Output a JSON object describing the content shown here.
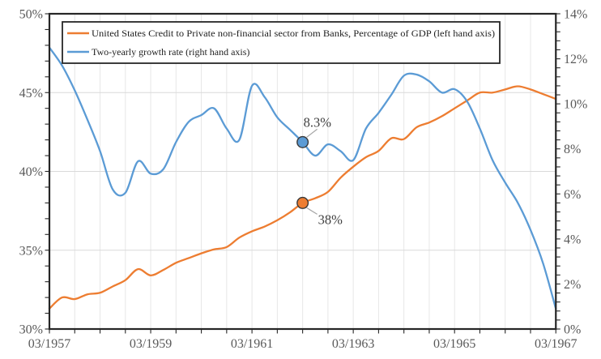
{
  "chart": {
    "legend": {
      "border_color": "#262626",
      "items": [
        {
          "label": "United States Credit to Private non-financial sector from Banks, Percentage of GDP (left hand axis)",
          "color": "#ED7D31"
        },
        {
          "label": "Two-yearly growth rate (right hand axis)",
          "color": "#5B9BD5"
        }
      ]
    }
  },
  "chart_data": {
    "type": "line",
    "title": "",
    "x": [
      "03/1957",
      "06/1957",
      "09/1957",
      "12/1957",
      "03/1958",
      "06/1958",
      "09/1958",
      "12/1958",
      "03/1959",
      "06/1959",
      "09/1959",
      "12/1959",
      "03/1960",
      "06/1960",
      "09/1960",
      "12/1960",
      "03/1961",
      "06/1961",
      "09/1961",
      "12/1961",
      "03/1962",
      "06/1962",
      "09/1962",
      "12/1962",
      "03/1963",
      "06/1963",
      "09/1963",
      "12/1963",
      "03/1964",
      "06/1964",
      "09/1964",
      "12/1964",
      "03/1965",
      "06/1965",
      "09/1965",
      "12/1965",
      "03/1966",
      "06/1966",
      "09/1966",
      "12/1966",
      "03/1967"
    ],
    "series": [
      {
        "name": "United States Credit to Private non-financial sector from Banks, Percentage of GDP (left hand axis)",
        "axis": "left",
        "color": "#ED7D31",
        "values": [
          31.3,
          32.0,
          31.9,
          32.2,
          32.3,
          32.7,
          33.1,
          33.8,
          33.4,
          33.75,
          34.2,
          34.5,
          34.8,
          35.05,
          35.2,
          35.8,
          36.2,
          36.5,
          36.9,
          37.4,
          38.0,
          38.3,
          38.7,
          39.6,
          40.3,
          40.9,
          41.3,
          42.1,
          42.05,
          42.8,
          43.1,
          43.5,
          44.0,
          44.5,
          45.0,
          45.0,
          45.2,
          45.4,
          45.2,
          44.9,
          44.6
        ]
      },
      {
        "name": "Two-yearly growth rate (right hand axis)",
        "axis": "right",
        "color": "#5B9BD5",
        "values": [
          12.5,
          11.7,
          10.6,
          9.3,
          7.9,
          6.2,
          6.05,
          7.45,
          6.9,
          7.1,
          8.3,
          9.2,
          9.5,
          9.8,
          8.9,
          8.4,
          10.8,
          10.3,
          9.4,
          8.85,
          8.3,
          7.7,
          8.2,
          7.9,
          7.5,
          8.9,
          9.6,
          10.4,
          11.25,
          11.3,
          11.0,
          10.5,
          10.65,
          10.1,
          8.9,
          7.5,
          6.5,
          5.6,
          4.4,
          2.9,
          0.9
        ]
      }
    ],
    "left_axis": {
      "range": [
        30,
        50
      ],
      "tick_labels": [
        "50%",
        "45%",
        "40%",
        "35%",
        "30%"
      ],
      "tick_values": [
        50,
        45,
        40,
        35,
        30
      ],
      "minor_tick_step": 1
    },
    "right_axis": {
      "range": [
        0,
        14
      ],
      "tick_labels": [
        "14%",
        "12%",
        "10%",
        "8%",
        "6%",
        "4%",
        "2%",
        "0%"
      ],
      "tick_values": [
        14,
        12,
        10,
        8,
        6,
        4,
        2,
        0
      ],
      "minor_tick_step": 0.4
    },
    "x_axis": {
      "tick_labels": [
        "03/1957",
        "03/1959",
        "03/1961",
        "03/1963",
        "03/1965",
        "03/1967"
      ],
      "tick_indices": [
        0,
        8,
        16,
        24,
        32,
        40
      ],
      "minor_tick_years": 0.5
    },
    "grid": {
      "h_line_values_left_axis": [
        35,
        40,
        45
      ],
      "v_line_every_years": 0.5,
      "h_color": "#D9D9D9",
      "v_color": "#E7E7E7"
    },
    "annotations": [
      {
        "label": "38%",
        "series_index": 0,
        "x_label": "03/1962",
        "x_index": 20,
        "value": 38,
        "placement": "below-right"
      },
      {
        "label": "8.3%",
        "series_index": 1,
        "x_label": "03/1962",
        "x_index": 20,
        "value": 8.3,
        "placement": "above-right"
      }
    ]
  }
}
